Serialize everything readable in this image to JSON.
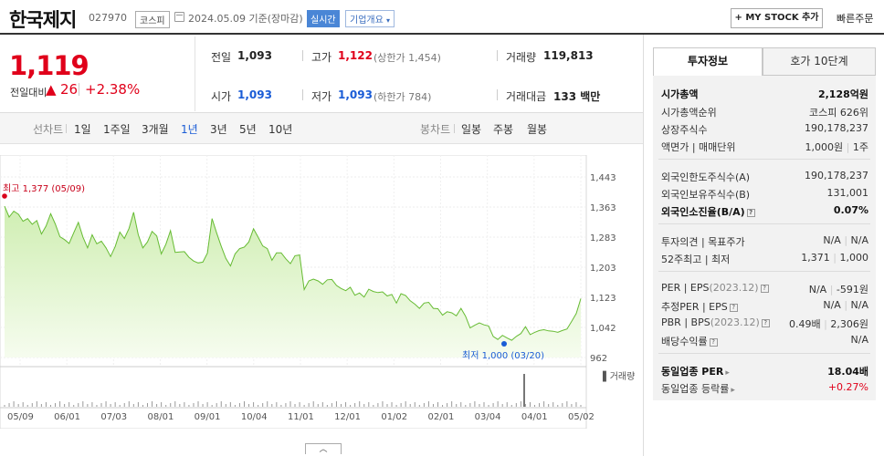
{
  "header": {
    "stock_name": "한국제지",
    "stock_code": "027970",
    "market": "코스피",
    "date_text": "2024.05.09  기준(장마감)",
    "realtime_label": "실시간",
    "company_info_label": "기업개요",
    "my_stock_label": "+ MY STOCK 추가",
    "quick_order_label": "빠른주문"
  },
  "quote": {
    "price": "1,119",
    "change_label": "전일대비",
    "change_arrow": "▲",
    "change_value": "26",
    "change_pct": "+2.38%",
    "prev_label": "전일",
    "prev_value": "1,093",
    "high_label": "고가",
    "high_value": "1,122",
    "upper_limit": "(상한가 1,454)",
    "volume_label": "거래량",
    "volume_value": "119,813",
    "open_label": "시가",
    "open_value": "1,093",
    "low_label": "저가",
    "low_value": "1,093",
    "lower_limit": "(하한가 784)",
    "amount_label": "거래대금",
    "amount_value": "133 백만"
  },
  "period_tabs": {
    "line_chart": "선차트",
    "items": [
      "1일",
      "1주일",
      "3개월",
      "1년",
      "3년",
      "5년",
      "10년"
    ],
    "active": "1년",
    "candle_chart": "봉차트",
    "candle_items": [
      "일봉",
      "주봉",
      "월봉"
    ]
  },
  "right_panel": {
    "tab_active": "투자정보",
    "tab_other": "호가 10단계",
    "market_cap_label": "시가총액",
    "market_cap_value": "2,128억원",
    "rank_label": "시가총액순위",
    "rank_market": "코스피",
    "rank_value": "626위",
    "shares_label": "상장주식수",
    "shares_value": "190,178,237",
    "par_label": "액면가 | 매매단위",
    "par_value": "1,000원",
    "unit_value": "1주",
    "foreign_limit_label": "외국인한도주식수(A)",
    "foreign_limit_value": "190,178,237",
    "foreign_hold_label": "외국인보유주식수(B)",
    "foreign_hold_value": "131,001",
    "foreign_rate_label": "외국인소진율(B/A)",
    "foreign_rate_value": "0.07%",
    "opinion_label": "투자의견 | 목표주가",
    "opinion_value": "N/A",
    "target_value": "N/A",
    "week52_label": "52주최고 | 최저",
    "week52_high": "1,371",
    "week52_low": "1,000",
    "per_label": "PER | EPS",
    "per_period": "(2023.12)",
    "per_value": "N/A",
    "eps_value": "-591원",
    "est_per_label": "추정PER | EPS",
    "est_per_value": "N/A",
    "est_eps_value": "N/A",
    "pbr_label": "PBR | BPS",
    "pbr_period": "(2023.12)",
    "pbr_value": "0.49배",
    "bps_value": "2,306원",
    "dividend_label": "배당수익률",
    "dividend_value": "N/A",
    "sector_per_label": "동일업종 PER",
    "sector_per_value": "18.04배",
    "sector_rate_label": "동일업종 등락률",
    "sector_rate_value": "+0.27%"
  },
  "chart_data": {
    "type": "area",
    "y_ticks": [
      "1,443",
      "1,363",
      "1,283",
      "1,203",
      "1,123",
      "1,042",
      "962"
    ],
    "ylim": [
      962,
      1443
    ],
    "x_ticks": [
      "05/09",
      "06/01",
      "07/03",
      "08/01",
      "09/01",
      "10/04",
      "11/01",
      "12/01",
      "01/02",
      "02/01",
      "03/04",
      "04/01",
      "05/02"
    ],
    "high_annotation": "최고 1,377 (05/09)",
    "low_annotation": "최저 1,000 (03/20)",
    "volume_label": "거래량",
    "series": [
      {
        "values": [
          1365,
          1336,
          1352,
          1344,
          1325,
          1332,
          1317,
          1327,
          1291,
          1312,
          1345,
          1318,
          1284,
          1276,
          1266,
          1294,
          1322,
          1283,
          1254,
          1289,
          1265,
          1272,
          1254,
          1231,
          1258,
          1296,
          1279,
          1306,
          1349,
          1289,
          1254,
          1270,
          1298,
          1286,
          1238,
          1264,
          1300,
          1242,
          1243,
          1244,
          1229,
          1219,
          1214,
          1216,
          1240,
          1332,
          1294,
          1258,
          1226,
          1206,
          1238,
          1252,
          1256,
          1270,
          1305,
          1283,
          1259,
          1252,
          1221,
          1241,
          1241,
          1225,
          1212,
          1233,
          1235,
          1143,
          1166,
          1171,
          1166,
          1157,
          1169,
          1170,
          1154,
          1146,
          1140,
          1149,
          1128,
          1134,
          1123,
          1144,
          1138,
          1135,
          1137,
          1126,
          1130,
          1107,
          1132,
          1127,
          1113,
          1104,
          1093,
          1107,
          1109,
          1093,
          1092,
          1075,
          1084,
          1081,
          1073,
          1093,
          1072,
          1041,
          1048,
          1054,
          1049,
          1046,
          1018,
          1010,
          1021,
          1014,
          1008,
          1018,
          1026,
          1044,
          1023,
          1029,
          1034,
          1036,
          1033,
          1032,
          1029,
          1034,
          1038,
          1058,
          1079,
          1119
        ],
        "color": "#66bb33"
      }
    ]
  }
}
